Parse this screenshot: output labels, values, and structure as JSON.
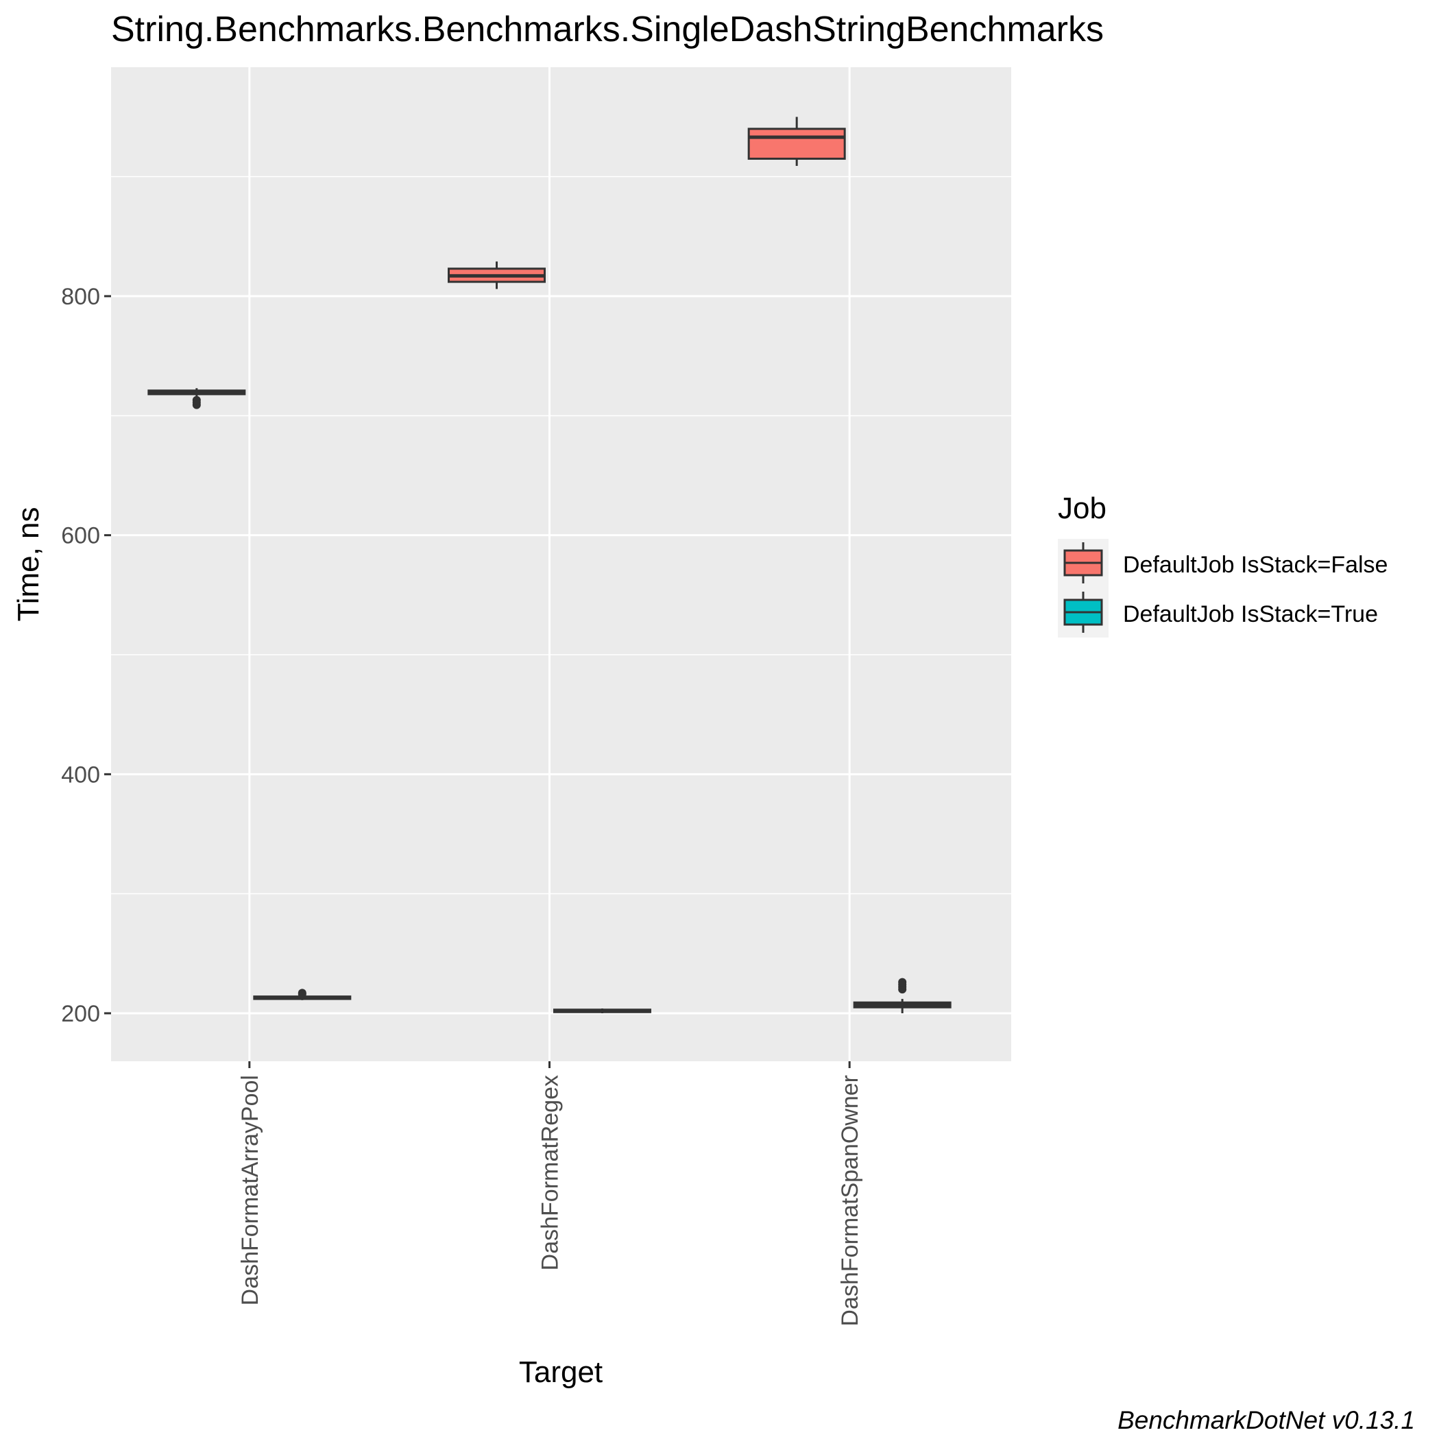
{
  "chart_data": {
    "type": "box",
    "title": "String.Benchmarks.Benchmarks.SingleDashStringBenchmarks",
    "xlabel": "Target",
    "ylabel": "Time, ns",
    "ylim": [
      160,
      990
    ],
    "yticks": [
      200,
      400,
      600,
      800
    ],
    "grid": true,
    "legend_position": "right",
    "legend_title": "Job",
    "categories": [
      "DashFormatArrayPool",
      "DashFormatRegex",
      "DashFormatSpanOwner"
    ],
    "series": [
      {
        "name": "DefaultJob IsStack=False",
        "color": "#F8766D",
        "boxes": [
          {
            "min": 716,
            "q1": 718,
            "median": 719,
            "q3": 721,
            "max": 723,
            "outliers": [
              709,
              711,
              713
            ]
          },
          {
            "min": 806,
            "q1": 812,
            "median": 817,
            "q3": 823,
            "max": 829,
            "outliers": []
          },
          {
            "min": 909,
            "q1": 915,
            "median": 933,
            "q3": 940,
            "max": 950,
            "outliers": []
          }
        ]
      },
      {
        "name": "DefaultJob IsStack=True",
        "color": "#00BFC4",
        "boxes": [
          {
            "min": 211,
            "q1": 212,
            "median": 213,
            "q3": 214,
            "max": 215,
            "outliers": [
              216,
              217
            ]
          },
          {
            "min": 200,
            "q1": 201,
            "median": 202,
            "q3": 203,
            "max": 204,
            "outliers": []
          },
          {
            "min": 200,
            "q1": 205,
            "median": 207,
            "q3": 209,
            "max": 212,
            "outliers": [
              220,
              222,
              224,
              226
            ]
          }
        ]
      }
    ]
  },
  "caption": "BenchmarkDotNet v0.13.1"
}
